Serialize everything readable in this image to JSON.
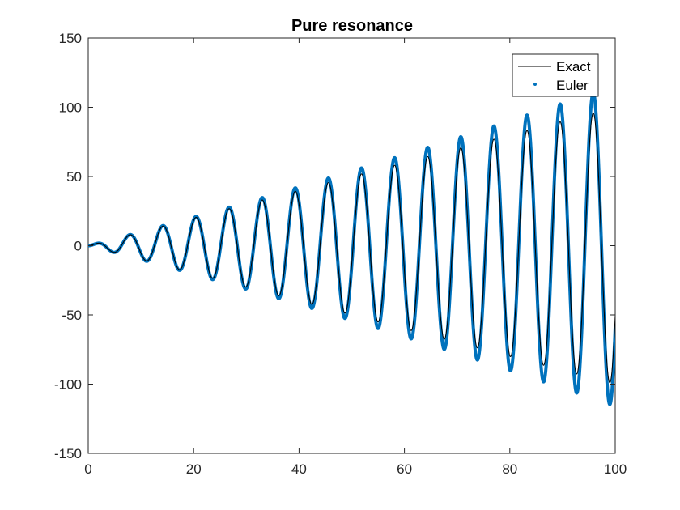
{
  "chart_data": {
    "type": "line",
    "title": "Pure resonance",
    "xlabel": "",
    "ylabel": "",
    "xlim": [
      0,
      100
    ],
    "ylim": [
      -150,
      150
    ],
    "xticks": [
      0,
      20,
      40,
      60,
      80,
      100
    ],
    "yticks": [
      -150,
      -100,
      -50,
      0,
      50,
      100,
      150
    ],
    "xtick_labels": [
      "0",
      "20",
      "40",
      "60",
      "80",
      "100"
    ],
    "ytick_labels": [
      "-150",
      "-100",
      "-50",
      "0",
      "50",
      "100",
      "150"
    ],
    "grid": false,
    "legend_position": "top-right",
    "series": [
      {
        "name": "Exact",
        "style": "line",
        "color": "#000000",
        "function": "x * sin(x)",
        "sample_x": [
          0,
          7.9,
          14.1,
          20.4,
          26.7,
          33.0,
          39.3,
          45.6,
          51.8,
          58.1,
          64.4,
          70.7,
          77.0,
          83.3,
          89.5,
          95.8
        ],
        "sample_y": [
          0,
          7.9,
          14.1,
          20.4,
          26.7,
          33.0,
          39.3,
          45.6,
          51.8,
          58.1,
          64.4,
          70.7,
          77.0,
          83.3,
          89.5,
          95.8
        ]
      },
      {
        "name": "Euler",
        "style": "dots",
        "color": "#0072BD",
        "note_visible": "",
        "sample_x": [
          0,
          7.9,
          14.1,
          20.4,
          26.7,
          33.0,
          39.3,
          45.6,
          51.8,
          58.1,
          64.4,
          70.7,
          77.0,
          83.3,
          89.5,
          95.8,
          99.0,
          100
        ],
        "sample_y": [
          0,
          8,
          14.5,
          21,
          27.5,
          34,
          41,
          48,
          55,
          62,
          69,
          77,
          84,
          92,
          100,
          110,
          -112,
          -57
        ]
      }
    ]
  }
}
